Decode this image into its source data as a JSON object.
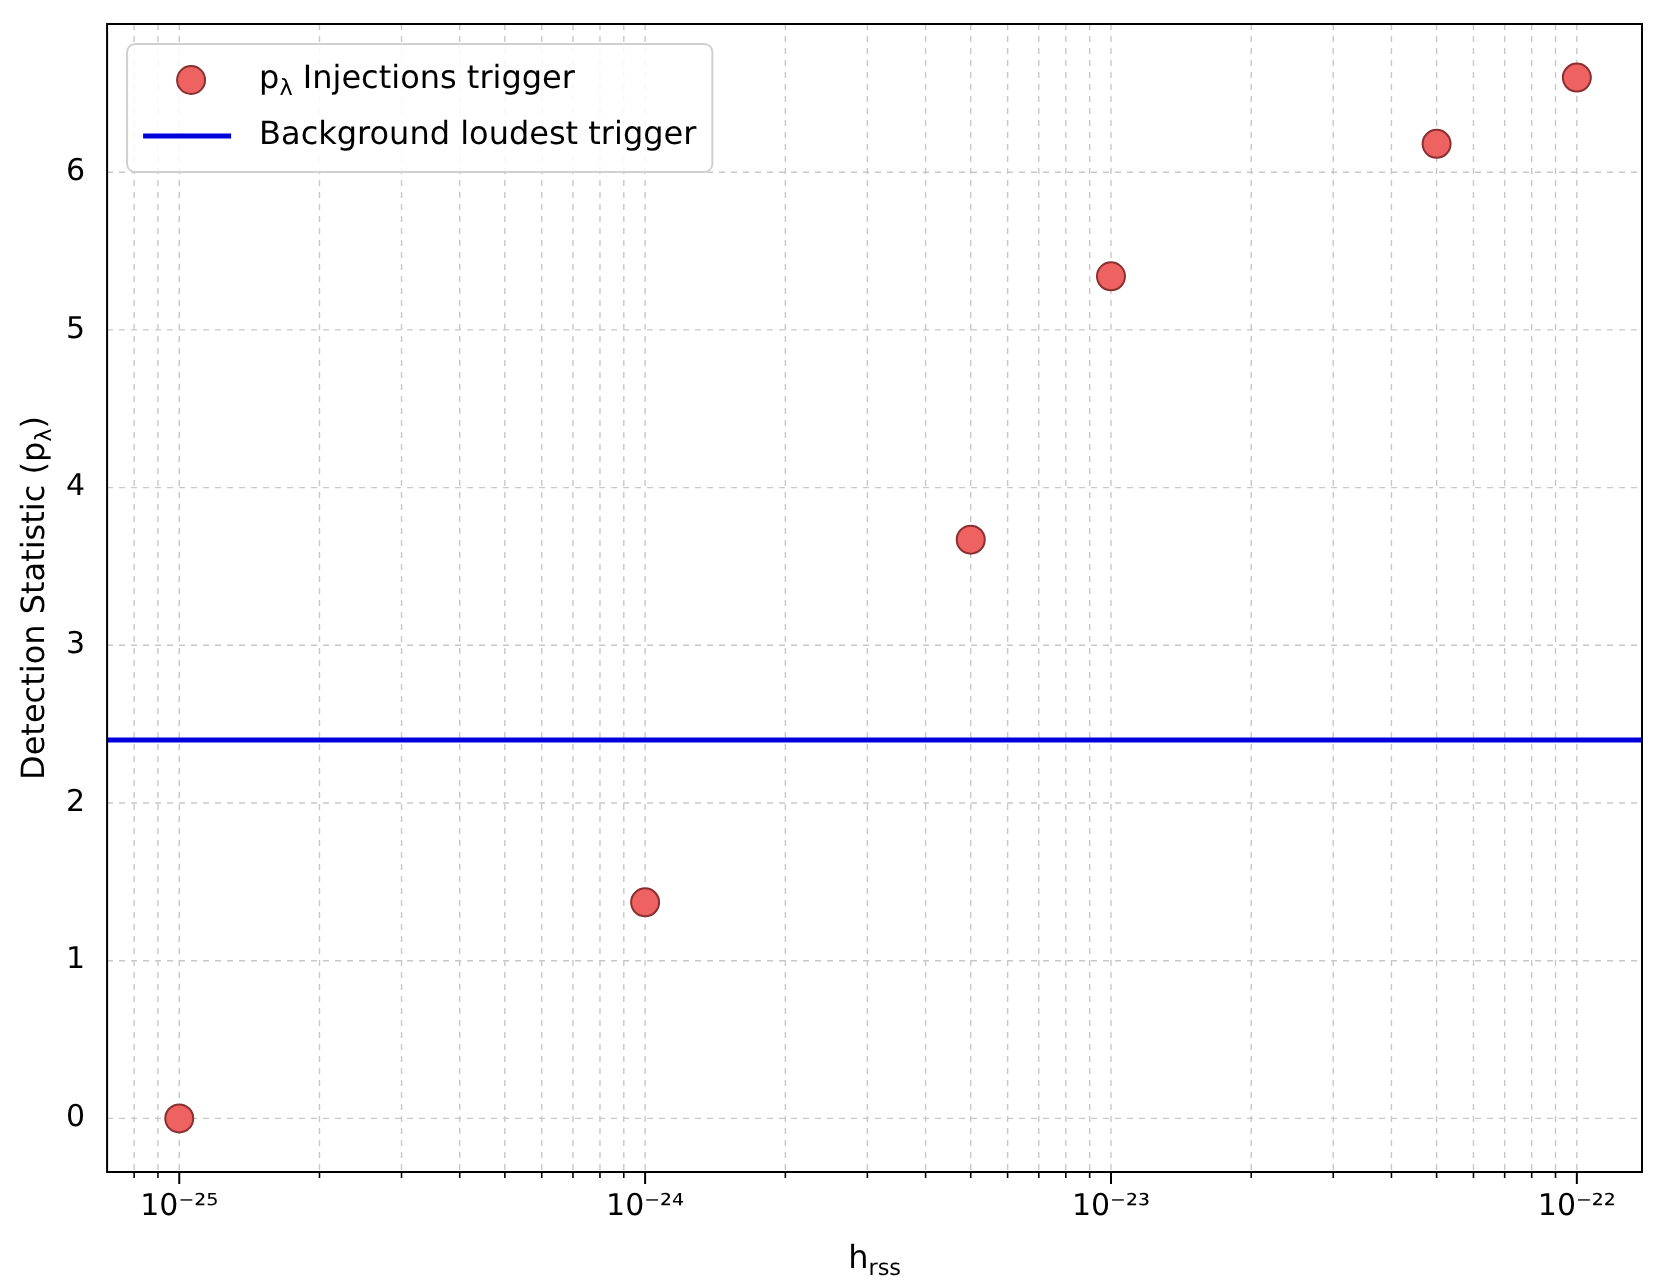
{
  "chart_data": {
    "type": "scatter",
    "xlabel": "h$_{rss}$",
    "ylabel": "Detection Statistic (p$_{λ}$)",
    "x": [
      1e-25,
      1e-24,
      5e-24,
      1e-23,
      5e-23,
      1e-22
    ],
    "series": [
      {
        "name": "p$_{λ}$ Injections trigger",
        "color": "#ee6262",
        "values": [
          0,
          1.37,
          3.67,
          5.34,
          6.18,
          6.6
        ]
      }
    ],
    "ref_lines": [
      {
        "axis": "y",
        "value": 2.4,
        "label": "Background loudest trigger",
        "color": "#0000dd"
      }
    ],
    "log": "x",
    "xlim": [
      7.1e-26,
      1.38e-22
    ],
    "xticks": [
      {
        "value": 1e-25,
        "label": "10⁻²⁵"
      },
      {
        "value": 1e-24,
        "label": "10⁻²⁴"
      },
      {
        "value": 1e-23,
        "label": "10⁻²³"
      },
      {
        "value": 1e-22,
        "label": "10⁻²²"
      }
    ],
    "ylim": [
      -0.34,
      6.94
    ],
    "yticks": [
      0,
      1,
      2,
      3,
      4,
      5,
      6
    ],
    "grid": true,
    "legend": "top left",
    "marker": "circle"
  }
}
